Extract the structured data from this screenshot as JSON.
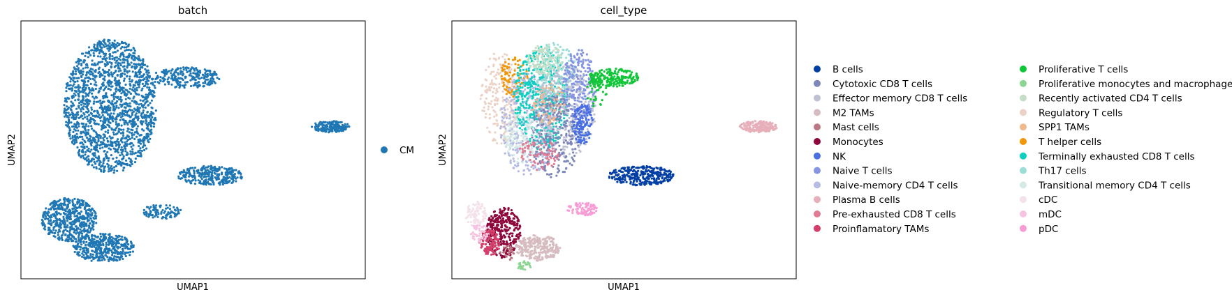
{
  "chart_data": [
    {
      "type": "scatter",
      "title": "batch",
      "xlabel": "UMAP1",
      "ylabel": "UMAP2",
      "grid": false,
      "legend_position": "right",
      "series": [
        {
          "name": "CM",
          "color": "#1f77b4"
        }
      ],
      "clusters": [
        {
          "cx": 0.26,
          "cy": 0.67,
          "rx": 0.135,
          "ry": 0.26,
          "series": 0,
          "n": 1700
        },
        {
          "cx": 0.48,
          "cy": 0.78,
          "rx": 0.1,
          "ry": 0.04,
          "series": 0,
          "n": 240
        },
        {
          "cx": 0.9,
          "cy": 0.59,
          "rx": 0.055,
          "ry": 0.022,
          "series": 0,
          "n": 180
        },
        {
          "cx": 0.55,
          "cy": 0.4,
          "rx": 0.095,
          "ry": 0.038,
          "series": 0,
          "n": 300
        },
        {
          "cx": 0.41,
          "cy": 0.26,
          "rx": 0.055,
          "ry": 0.03,
          "series": 0,
          "n": 90
        },
        {
          "cx": 0.14,
          "cy": 0.23,
          "rx": 0.08,
          "ry": 0.085,
          "series": 0,
          "n": 520
        },
        {
          "cx": 0.24,
          "cy": 0.12,
          "rx": 0.09,
          "ry": 0.055,
          "series": 0,
          "n": 400
        }
      ]
    },
    {
      "type": "scatter",
      "title": "cell_type",
      "xlabel": "UMAP1",
      "ylabel": "UMAP2",
      "grid": false,
      "legend_position": "right",
      "series": [
        {
          "name": "B cells",
          "color": "#023fa5"
        },
        {
          "name": "Cytotoxic CD8 T cells",
          "color": "#7d87b9"
        },
        {
          "name": "Effector memory CD8 T cells",
          "color": "#bec1d4"
        },
        {
          "name": "M2 TAMs",
          "color": "#d6bcc0"
        },
        {
          "name": "Mast cells",
          "color": "#bb7784"
        },
        {
          "name": "Monocytes",
          "color": "#8e063b"
        },
        {
          "name": "NK",
          "color": "#4a6fe3"
        },
        {
          "name": "Naive T cells",
          "color": "#8595e1"
        },
        {
          "name": "Naive-memory CD4 T cells",
          "color": "#b5bbe3"
        },
        {
          "name": "Plasma B cells",
          "color": "#e6afb9"
        },
        {
          "name": "Pre-exhausted CD8 T cells",
          "color": "#e07b91"
        },
        {
          "name": "Proinflamatory TAMs",
          "color": "#d33f6a"
        },
        {
          "name": "Proliferative T cells",
          "color": "#11c638"
        },
        {
          "name": "Proliferative monocytes and macrophages",
          "color": "#8dd593"
        },
        {
          "name": "Recently activated CD4 T cells",
          "color": "#c6dec7"
        },
        {
          "name": "Regulatory T cells",
          "color": "#ead3c6"
        },
        {
          "name": "SPP1 TAMs",
          "color": "#f0b98d"
        },
        {
          "name": "T helper cells",
          "color": "#ef9708"
        },
        {
          "name": "Terminally exhausted CD8 T cells",
          "color": "#0fcfc0"
        },
        {
          "name": "Th17 cells",
          "color": "#9cded6"
        },
        {
          "name": "Transitional memory CD4 T cells",
          "color": "#d5eae7"
        },
        {
          "name": "cDC",
          "color": "#f3e1eb"
        },
        {
          "name": "mDC",
          "color": "#f6c4e1"
        },
        {
          "name": "pDC",
          "color": "#f79cd4"
        }
      ],
      "clusters": [
        {
          "cx": 0.14,
          "cy": 0.7,
          "rx": 0.06,
          "ry": 0.18,
          "series": 15,
          "n": 220
        },
        {
          "cx": 0.18,
          "cy": 0.78,
          "rx": 0.04,
          "ry": 0.08,
          "series": 17,
          "n": 90
        },
        {
          "cx": 0.22,
          "cy": 0.6,
          "rx": 0.08,
          "ry": 0.2,
          "series": 8,
          "n": 380
        },
        {
          "cx": 0.26,
          "cy": 0.7,
          "rx": 0.08,
          "ry": 0.2,
          "series": 18,
          "n": 520
        },
        {
          "cx": 0.3,
          "cy": 0.8,
          "rx": 0.06,
          "ry": 0.12,
          "series": 19,
          "n": 200
        },
        {
          "cx": 0.33,
          "cy": 0.65,
          "rx": 0.09,
          "ry": 0.18,
          "series": 2,
          "n": 380
        },
        {
          "cx": 0.3,
          "cy": 0.55,
          "rx": 0.07,
          "ry": 0.16,
          "series": 1,
          "n": 260
        },
        {
          "cx": 0.37,
          "cy": 0.75,
          "rx": 0.05,
          "ry": 0.14,
          "series": 7,
          "n": 220
        },
        {
          "cx": 0.38,
          "cy": 0.6,
          "rx": 0.03,
          "ry": 0.08,
          "series": 6,
          "n": 140
        },
        {
          "cx": 0.27,
          "cy": 0.85,
          "rx": 0.05,
          "ry": 0.06,
          "series": 14,
          "n": 120
        },
        {
          "cx": 0.2,
          "cy": 0.55,
          "rx": 0.05,
          "ry": 0.1,
          "series": 20,
          "n": 120
        },
        {
          "cx": 0.25,
          "cy": 0.48,
          "rx": 0.06,
          "ry": 0.06,
          "series": 10,
          "n": 80
        },
        {
          "cx": 0.28,
          "cy": 0.68,
          "rx": 0.05,
          "ry": 0.08,
          "series": 16,
          "n": 60
        },
        {
          "cx": 0.42,
          "cy": 0.72,
          "rx": 0.03,
          "ry": 0.06,
          "series": 12,
          "n": 40
        },
        {
          "cx": 0.47,
          "cy": 0.78,
          "rx": 0.075,
          "ry": 0.035,
          "series": 12,
          "n": 220
        },
        {
          "cx": 0.89,
          "cy": 0.59,
          "rx": 0.055,
          "ry": 0.022,
          "series": 9,
          "n": 190
        },
        {
          "cx": 0.55,
          "cy": 0.4,
          "rx": 0.095,
          "ry": 0.038,
          "series": 0,
          "n": 320
        },
        {
          "cx": 0.38,
          "cy": 0.27,
          "rx": 0.045,
          "ry": 0.025,
          "series": 23,
          "n": 90
        },
        {
          "cx": 0.15,
          "cy": 0.18,
          "rx": 0.05,
          "ry": 0.1,
          "series": 5,
          "n": 320
        },
        {
          "cx": 0.11,
          "cy": 0.14,
          "rx": 0.03,
          "ry": 0.05,
          "series": 11,
          "n": 120
        },
        {
          "cx": 0.07,
          "cy": 0.25,
          "rx": 0.03,
          "ry": 0.05,
          "series": 21,
          "n": 80
        },
        {
          "cx": 0.08,
          "cy": 0.18,
          "rx": 0.025,
          "ry": 0.04,
          "series": 22,
          "n": 50
        },
        {
          "cx": 0.25,
          "cy": 0.12,
          "rx": 0.065,
          "ry": 0.05,
          "series": 3,
          "n": 260
        },
        {
          "cx": 0.21,
          "cy": 0.05,
          "rx": 0.02,
          "ry": 0.02,
          "series": 13,
          "n": 25
        },
        {
          "cx": 0.16,
          "cy": 0.1,
          "rx": 0.02,
          "ry": 0.03,
          "series": 4,
          "n": 25
        }
      ]
    }
  ]
}
